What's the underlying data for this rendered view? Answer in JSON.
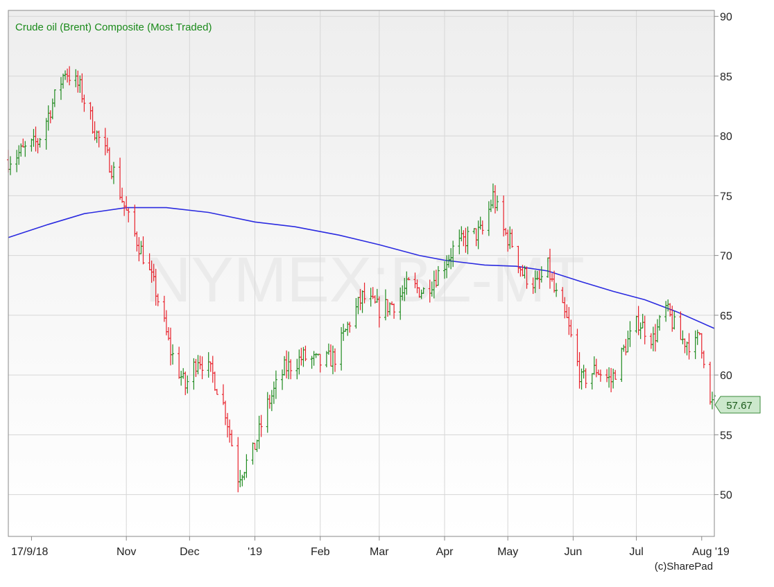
{
  "chart_data": {
    "type": "ohlc",
    "title": "Crude oil (Brent) Composite (Most Traded)",
    "watermark": "NYMEX:BZ-MT",
    "credit": "(c)SharePad",
    "last_price_label": "57.67",
    "y_axis": {
      "position": "right",
      "ylim": [
        46.5,
        90.5
      ],
      "ticks": [
        50,
        55,
        60,
        65,
        70,
        75,
        80,
        85,
        90
      ]
    },
    "x_axis": {
      "ticks": [
        {
          "label": "17/9/18",
          "date": "2018-09-17"
        },
        {
          "label": "Nov",
          "date": "2018-11-01"
        },
        {
          "label": "Dec",
          "date": "2018-12-01"
        },
        {
          "label": "'19",
          "date": "2019-01-01"
        },
        {
          "label": "Feb",
          "date": "2019-02-01"
        },
        {
          "label": "Mar",
          "date": "2019-03-01"
        },
        {
          "label": "Apr",
          "date": "2019-04-01"
        },
        {
          "label": "May",
          "date": "2019-05-01"
        },
        {
          "label": "Jun",
          "date": "2019-06-01"
        },
        {
          "label": "Jul",
          "date": "2019-07-01"
        },
        {
          "label": "Aug '19",
          "date": "2019-08-01"
        }
      ],
      "range": [
        "2018-09-06",
        "2019-08-07"
      ]
    },
    "grid": true,
    "colors": {
      "up": "#1f8a1f",
      "down": "#e8202a",
      "moving_average": "#2a2ae0",
      "title": "#1a8a1a",
      "badge_fill": "#cce8cc",
      "badge_stroke": "#3a8a3a",
      "watermark": "#ebebeb"
    },
    "series": [
      {
        "kind": "moving_average",
        "points": [
          [
            "2018-09-06",
            71.5
          ],
          [
            "2018-09-25",
            72.6
          ],
          [
            "2018-10-12",
            73.5
          ],
          [
            "2018-11-01",
            74.0
          ],
          [
            "2018-11-20",
            74.0
          ],
          [
            "2018-12-10",
            73.6
          ],
          [
            "2019-01-01",
            72.8
          ],
          [
            "2019-01-20",
            72.4
          ],
          [
            "2019-02-10",
            71.7
          ],
          [
            "2019-03-01",
            70.9
          ],
          [
            "2019-03-20",
            70.0
          ],
          [
            "2019-04-01",
            69.6
          ],
          [
            "2019-04-20",
            69.2
          ],
          [
            "2019-05-05",
            69.1
          ],
          [
            "2019-05-20",
            68.7
          ],
          [
            "2019-06-05",
            67.8
          ],
          [
            "2019-06-20",
            67.0
          ],
          [
            "2019-07-05",
            66.3
          ],
          [
            "2019-07-20",
            65.3
          ],
          [
            "2019-08-07",
            63.9
          ]
        ]
      },
      {
        "kind": "price",
        "anchors": [
          [
            "2018-09-06",
            78.0
          ],
          [
            "2018-09-20",
            79.5
          ],
          [
            "2018-10-03",
            85.5
          ],
          [
            "2018-10-10",
            84.0
          ],
          [
            "2018-10-17",
            80.5
          ],
          [
            "2018-10-26",
            77.0
          ],
          [
            "2018-11-02",
            73.0
          ],
          [
            "2018-11-09",
            70.0
          ],
          [
            "2018-11-15",
            67.0
          ],
          [
            "2018-11-22",
            62.0
          ],
          [
            "2018-11-29",
            59.0
          ],
          [
            "2018-12-05",
            61.5
          ],
          [
            "2018-12-12",
            60.0
          ],
          [
            "2018-12-18",
            57.0
          ],
          [
            "2018-12-24",
            51.5
          ],
          [
            "2018-12-31",
            53.5
          ],
          [
            "2019-01-07",
            57.5
          ],
          [
            "2019-01-15",
            60.5
          ],
          [
            "2019-01-24",
            61.5
          ],
          [
            "2019-02-01",
            61.0
          ],
          [
            "2019-02-08",
            61.5
          ],
          [
            "2019-02-15",
            64.5
          ],
          [
            "2019-02-21",
            66.5
          ],
          [
            "2019-03-01",
            65.5
          ],
          [
            "2019-03-08",
            66.0
          ],
          [
            "2019-03-15",
            67.5
          ],
          [
            "2019-03-22",
            67.0
          ],
          [
            "2019-03-29",
            68.5
          ],
          [
            "2019-04-05",
            70.5
          ],
          [
            "2019-04-12",
            71.5
          ],
          [
            "2019-04-19",
            72.0
          ],
          [
            "2019-04-24",
            75.0
          ],
          [
            "2019-04-29",
            72.0
          ],
          [
            "2019-05-03",
            71.0
          ],
          [
            "2019-05-08",
            68.5
          ],
          [
            "2019-05-15",
            67.5
          ],
          [
            "2019-05-20",
            69.0
          ],
          [
            "2019-05-23",
            67.0
          ],
          [
            "2019-05-29",
            64.5
          ],
          [
            "2019-06-05",
            59.5
          ],
          [
            "2019-06-12",
            60.5
          ],
          [
            "2019-06-19",
            59.5
          ],
          [
            "2019-06-26",
            62.5
          ],
          [
            "2019-07-02",
            64.5
          ],
          [
            "2019-07-09",
            63.0
          ],
          [
            "2019-07-15",
            65.5
          ],
          [
            "2019-07-22",
            63.0
          ],
          [
            "2019-07-29",
            62.5
          ],
          [
            "2019-07-31",
            63.5
          ],
          [
            "2019-08-03",
            60.5
          ],
          [
            "2019-08-05",
            57.5
          ],
          [
            "2019-08-07",
            57.67
          ]
        ]
      }
    ]
  }
}
